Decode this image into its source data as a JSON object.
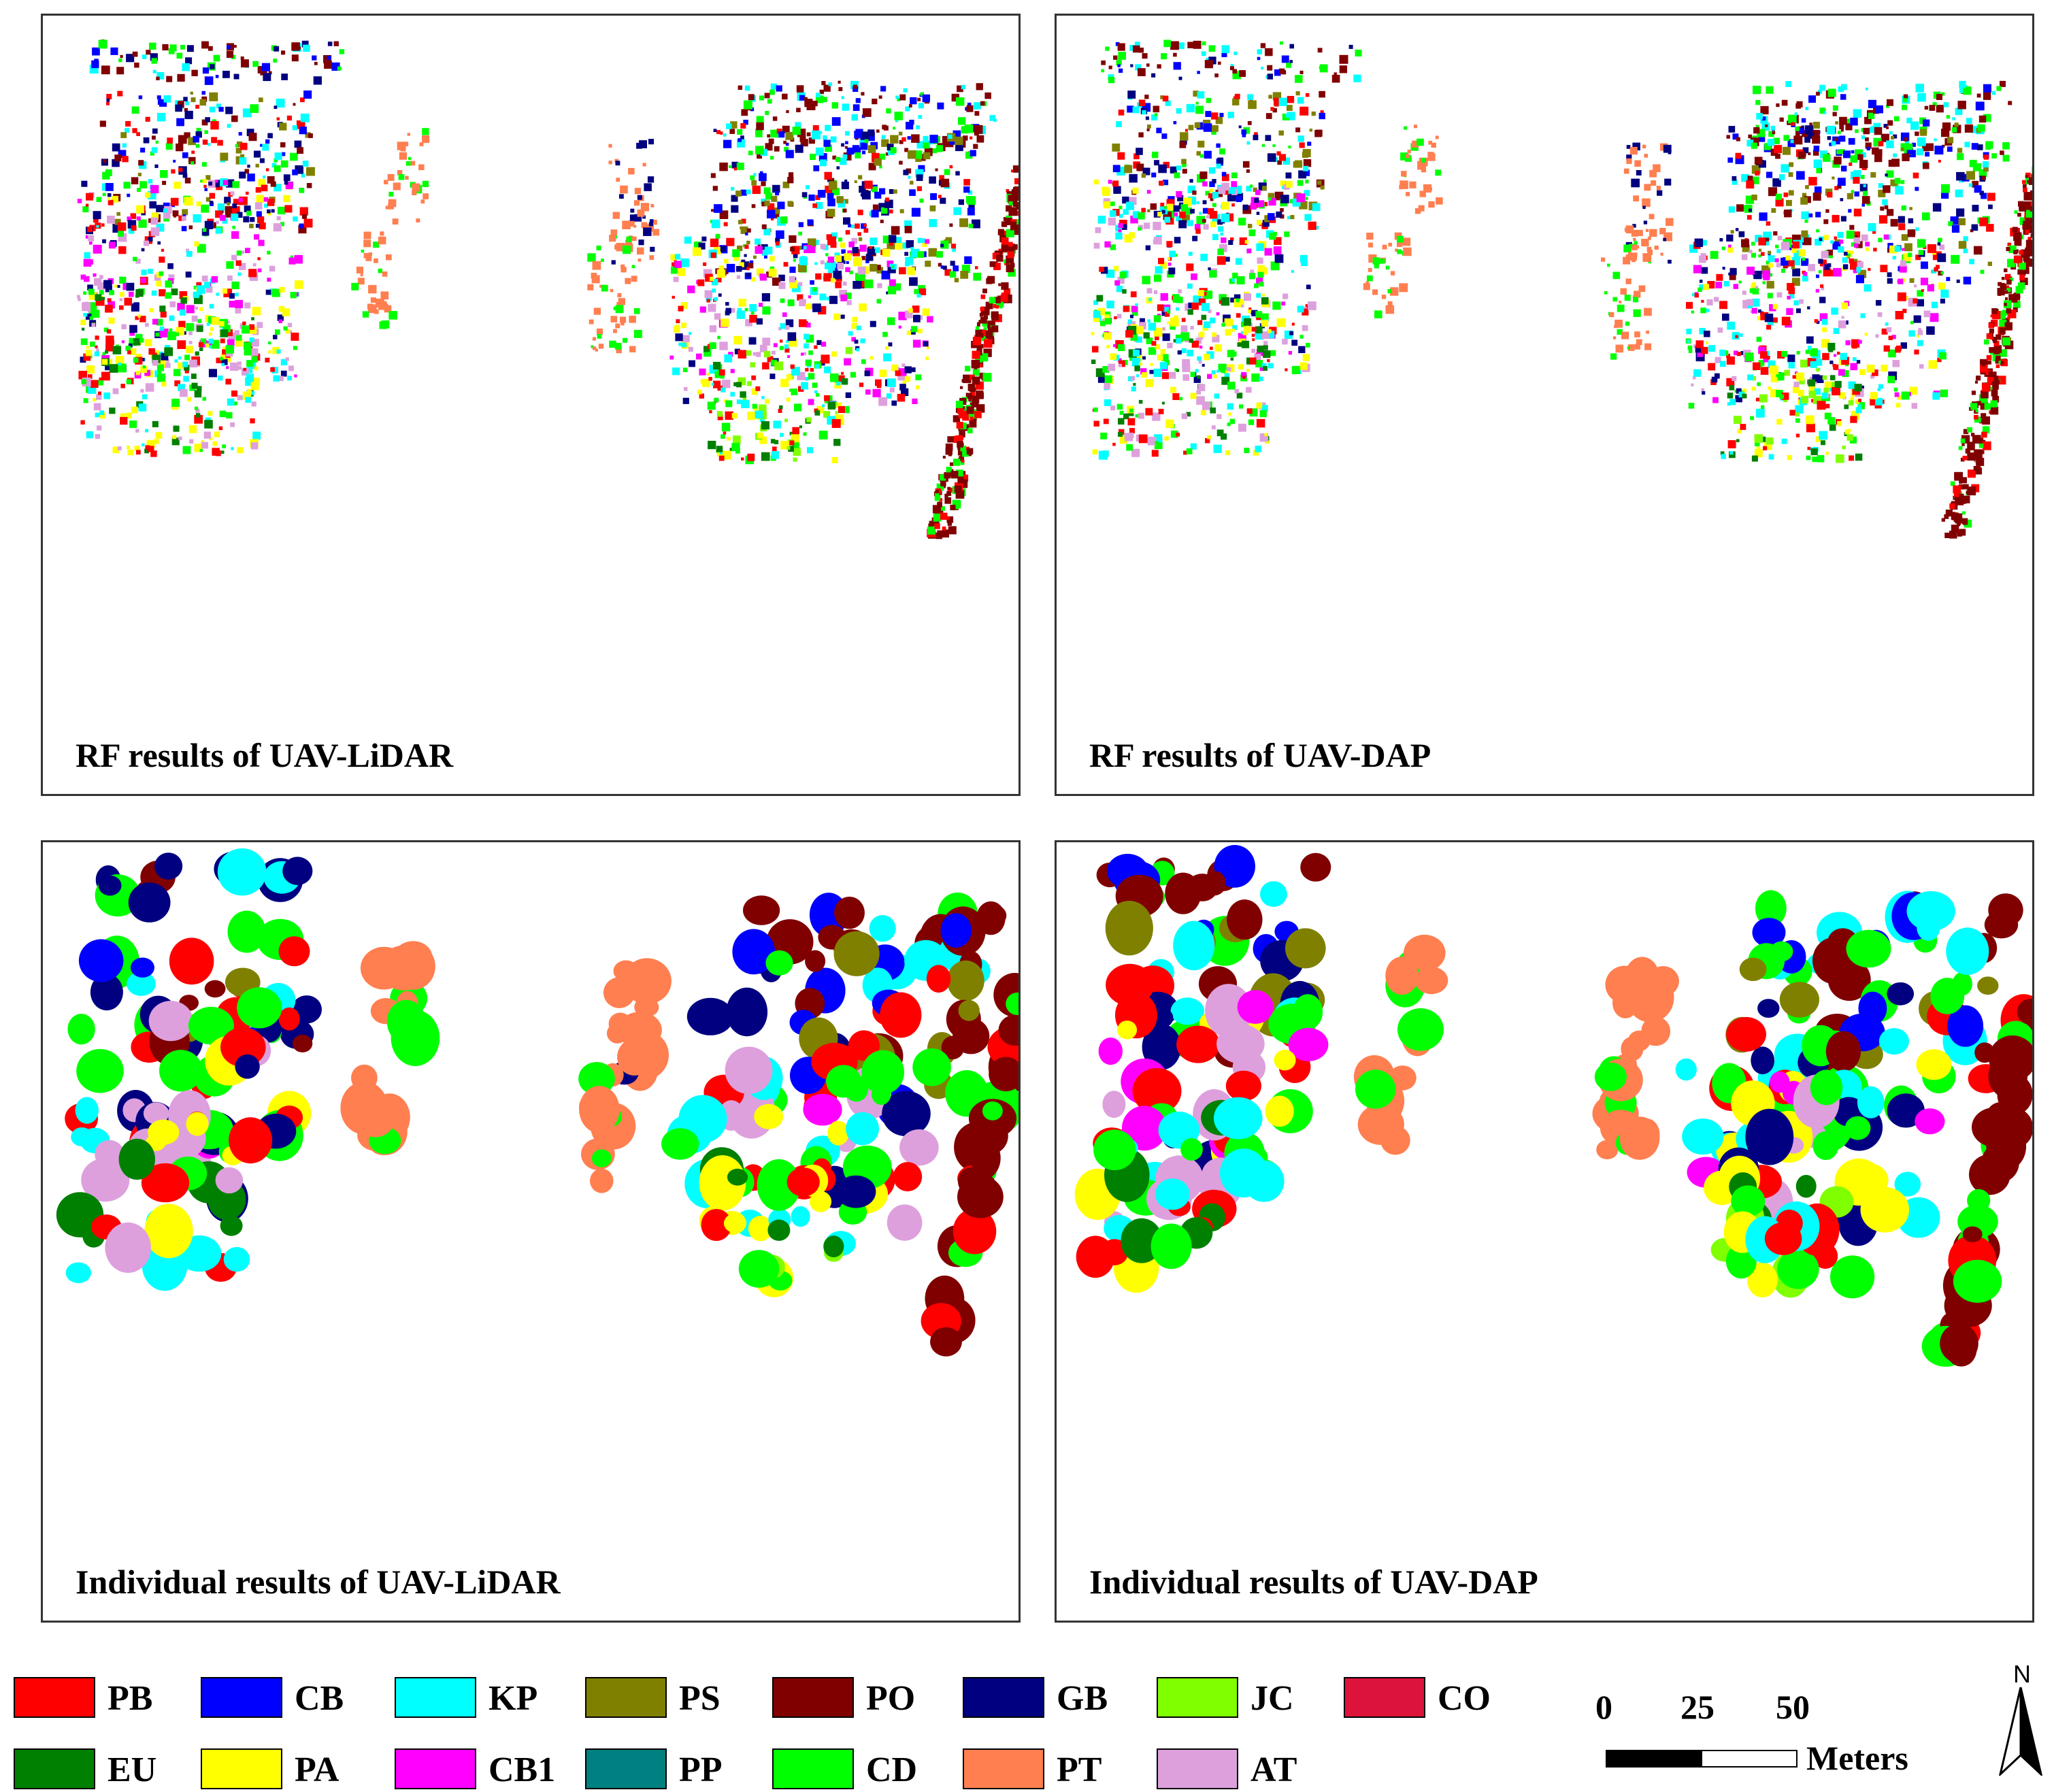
{
  "panels": [
    {
      "caption": "RF results of UAV-LiDAR",
      "mode": "rf",
      "source": "lidar"
    },
    {
      "caption": "RF results of UAV-DAP",
      "mode": "rf",
      "source": "dap"
    },
    {
      "caption": "Individual results of UAV-LiDAR",
      "mode": "ind",
      "source": "lidar"
    },
    {
      "caption": "Individual results of UAV-DAP",
      "mode": "ind",
      "source": "dap"
    }
  ],
  "legend": [
    {
      "code": "PB",
      "color": "#ff0000"
    },
    {
      "code": "CB",
      "color": "#0000ff"
    },
    {
      "code": "KP",
      "color": "#00ffff"
    },
    {
      "code": "PS",
      "color": "#808000"
    },
    {
      "code": "PO",
      "color": "#800000"
    },
    {
      "code": "GB",
      "color": "#000080"
    },
    {
      "code": "JC",
      "color": "#80ff00"
    },
    {
      "code": "CO",
      "color": "#dc143c"
    },
    {
      "code": "EU",
      "color": "#008000"
    },
    {
      "code": "PA",
      "color": "#ffff00"
    },
    {
      "code": "CB1",
      "color": "#ff00ff"
    },
    {
      "code": "PP",
      "color": "#008080"
    },
    {
      "code": "CD",
      "color": "#00ff00"
    },
    {
      "code": "PT",
      "color": "#ff7f50"
    },
    {
      "code": "AT",
      "color": "#dda0dd"
    }
  ],
  "scale_bar": {
    "ticks": [
      "0",
      "25",
      "50"
    ],
    "unit": "Meters"
  },
  "north_arrow": {
    "label": "N"
  }
}
